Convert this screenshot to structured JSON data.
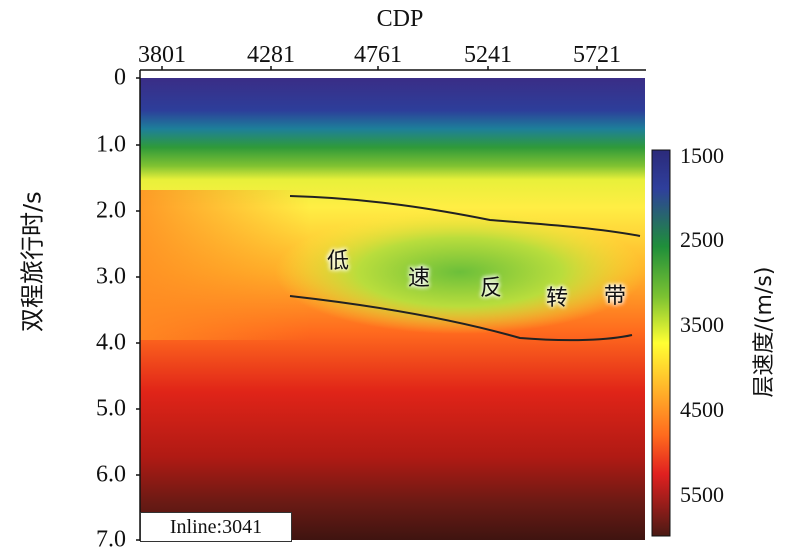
{
  "chart_data": {
    "type": "heatmap",
    "title": "CDP",
    "xlabel": "CDP",
    "ylabel": "双程旅行时/s",
    "x_ticks": [
      "3801",
      "4281",
      "4761",
      "5241",
      "5721"
    ],
    "y_ticks": [
      "0",
      "1.0",
      "2.0",
      "3.0",
      "4.0",
      "5.0",
      "6.0",
      "7.0"
    ],
    "ylim": [
      0,
      7
    ],
    "colorbar": {
      "label": "层速度/(m/s)",
      "ticks": [
        "1500",
        "2500",
        "3500",
        "4500",
        "5500"
      ],
      "range": [
        1500,
        5500
      ],
      "colors": [
        "#2b2a7a",
        "#1f8f3a",
        "#ffff33",
        "#ff8c1a",
        "#e02020",
        "#4a1a14"
      ]
    },
    "annotation": {
      "chars": [
        "低",
        "速",
        "反",
        "转",
        "带"
      ]
    },
    "inline_label": "Inline:3041"
  }
}
